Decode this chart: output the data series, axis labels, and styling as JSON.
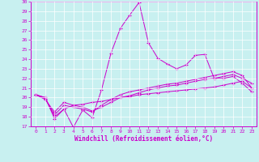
{
  "xlabel": "Windchill (Refroidissement éolien,°C)",
  "ylabel": "",
  "xlim": [
    -0.5,
    23.5
  ],
  "ylim": [
    17,
    30
  ],
  "xticks": [
    0,
    1,
    2,
    3,
    4,
    5,
    6,
    7,
    8,
    9,
    10,
    11,
    12,
    13,
    14,
    15,
    16,
    17,
    18,
    19,
    20,
    21,
    22,
    23
  ],
  "yticks": [
    17,
    18,
    19,
    20,
    21,
    22,
    23,
    24,
    25,
    26,
    27,
    28,
    29,
    30
  ],
  "background_color": "#c8f0f0",
  "line_color": "#cc00cc",
  "grid_color": "#ffffff",
  "line1_y": [
    20.3,
    20.0,
    17.8,
    18.8,
    16.9,
    18.7,
    17.9,
    20.8,
    24.6,
    27.2,
    28.6,
    29.9,
    25.7,
    24.1,
    23.5,
    23.0,
    23.4,
    24.4,
    24.5,
    22.0,
    22.0,
    22.2,
    21.5,
    20.6
  ],
  "line2_y": [
    20.3,
    20.0,
    18.0,
    18.8,
    19.2,
    19.3,
    19.5,
    19.6,
    19.8,
    20.0,
    20.1,
    20.3,
    20.4,
    20.5,
    20.6,
    20.7,
    20.8,
    20.9,
    21.0,
    21.1,
    21.3,
    21.5,
    21.7,
    21.0
  ],
  "line3_y": [
    20.3,
    19.8,
    18.5,
    19.5,
    19.2,
    19.0,
    18.6,
    19.0,
    19.5,
    20.0,
    20.2,
    20.5,
    20.8,
    21.0,
    21.2,
    21.3,
    21.5,
    21.7,
    21.9,
    22.0,
    22.2,
    22.4,
    22.0,
    21.5
  ],
  "line4_y": [
    20.3,
    19.9,
    18.2,
    19.2,
    19.0,
    18.8,
    18.5,
    19.2,
    19.8,
    20.3,
    20.6,
    20.8,
    21.0,
    21.2,
    21.4,
    21.5,
    21.7,
    21.9,
    22.1,
    22.3,
    22.5,
    22.7,
    22.3,
    21.0
  ],
  "tick_fontsize": 4.5,
  "xlabel_fontsize": 5.5
}
